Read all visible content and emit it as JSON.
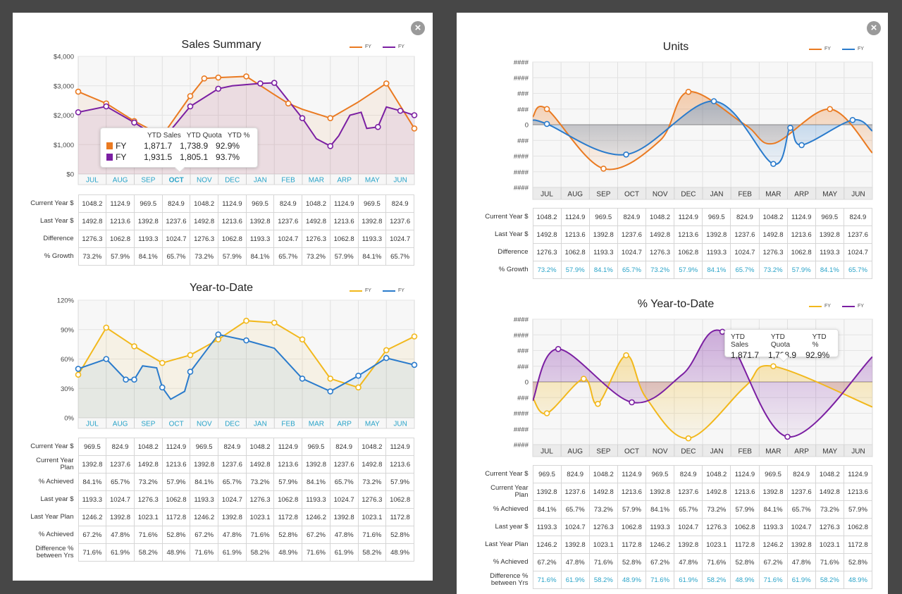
{
  "colors": {
    "orange": "#ea7a21",
    "purple": "#7b1fa2",
    "gold": "#f2b81c",
    "blue": "#2a7bcc",
    "teal": "#29a3c8"
  },
  "icons": {
    "close": "close-icon"
  },
  "months": [
    "JUL",
    "AUG",
    "SEP",
    "OCT",
    "NOV",
    "DEC",
    "JAN",
    "FEB",
    "MAR",
    "ARP",
    "MAY",
    "JUN"
  ],
  "sales_summary": {
    "title": "Sales Summary",
    "legend": [
      "FY",
      "FY"
    ],
    "tooltip": {
      "headers": [
        "YTD Sales",
        "YTD Quota",
        "YTD %"
      ],
      "rows": [
        {
          "name": "FY",
          "values": [
            "1,871.7",
            "1,738.9",
            "92.9%"
          ]
        },
        {
          "name": "FY",
          "values": [
            "1,931.5",
            "1,805.1",
            "93.7%"
          ]
        }
      ]
    },
    "table": [
      {
        "label": "Current Year $",
        "values": [
          "1048.2",
          "1124.9",
          "969.5",
          "824.9",
          "1048.2",
          "1124.9",
          "969.5",
          "824.9",
          "1048.2",
          "1124.9",
          "969.5",
          "824.9"
        ]
      },
      {
        "label": "Last Year $",
        "values": [
          "1492.8",
          "1213.6",
          "1392.8",
          "1237.6",
          "1492.8",
          "1213.6",
          "1392.8",
          "1237.6",
          "1492.8",
          "1213.6",
          "1392.8",
          "1237.6"
        ]
      },
      {
        "label": "Difference",
        "values": [
          "1276.3",
          "1062.8",
          "1193.3",
          "1024.7",
          "1276.3",
          "1062.8",
          "1193.3",
          "1024.7",
          "1276.3",
          "1062.8",
          "1193.3",
          "1024.7"
        ]
      },
      {
        "label": "% Growth",
        "values": [
          "73.2%",
          "57.9%",
          "84.1%",
          "65.7%",
          "73.2%",
          "57.9%",
          "84.1%",
          "65.7%",
          "73.2%",
          "57.9%",
          "84.1%",
          "65.7%"
        ]
      }
    ]
  },
  "ytd": {
    "title": "Year-to-Date",
    "legend": [
      "FY",
      "FY"
    ],
    "table": [
      {
        "label": "Current Year $",
        "values": [
          "969.5",
          "824.9",
          "1048.2",
          "1124.9",
          "969.5",
          "824.9",
          "1048.2",
          "1124.9",
          "969.5",
          "824.9",
          "1048.2",
          "1124.9"
        ]
      },
      {
        "label": "Current Year Plan",
        "values": [
          "1392.8",
          "1237.6",
          "1492.8",
          "1213.6",
          "1392.8",
          "1237.6",
          "1492.8",
          "1213.6",
          "1392.8",
          "1237.6",
          "1492.8",
          "1213.6"
        ]
      },
      {
        "label": "% Achieved",
        "values": [
          "84.1%",
          "65.7%",
          "73.2%",
          "57.9%",
          "84.1%",
          "65.7%",
          "73.2%",
          "57.9%",
          "84.1%",
          "65.7%",
          "73.2%",
          "57.9%"
        ]
      },
      {
        "label": "Last year $",
        "values": [
          "1193.3",
          "1024.7",
          "1276.3",
          "1062.8",
          "1193.3",
          "1024.7",
          "1276.3",
          "1062.8",
          "1193.3",
          "1024.7",
          "1276.3",
          "1062.8"
        ]
      },
      {
        "label": "Last Year Plan",
        "values": [
          "1246.2",
          "1392.8",
          "1023.1",
          "1172.8",
          "1246.2",
          "1392.8",
          "1023.1",
          "1172.8",
          "1246.2",
          "1392.8",
          "1023.1",
          "1172.8"
        ]
      },
      {
        "label": "% Achieved",
        "values": [
          "67.2%",
          "47.8%",
          "71.6%",
          "52.8%",
          "67.2%",
          "47.8%",
          "71.6%",
          "52.8%",
          "67.2%",
          "47.8%",
          "71.6%",
          "52.8%"
        ]
      },
      {
        "label": "Difference % between Yrs",
        "values": [
          "71.6%",
          "61.9%",
          "58.2%",
          "48.9%",
          "71.6%",
          "61.9%",
          "58.2%",
          "48.9%",
          "71.6%",
          "61.9%",
          "58.2%",
          "48.9%"
        ]
      }
    ]
  },
  "units": {
    "title": "Units",
    "legend": [
      "FY",
      "FY"
    ],
    "table": [
      {
        "label": "Current Year $",
        "values": [
          "1048.2",
          "1124.9",
          "969.5",
          "824.9",
          "1048.2",
          "1124.9",
          "969.5",
          "824.9",
          "1048.2",
          "1124.9",
          "969.5",
          "824.9"
        ]
      },
      {
        "label": "Last Year $",
        "values": [
          "1492.8",
          "1213.6",
          "1392.8",
          "1237.6",
          "1492.8",
          "1213.6",
          "1392.8",
          "1237.6",
          "1492.8",
          "1213.6",
          "1392.8",
          "1237.6"
        ]
      },
      {
        "label": "Difference",
        "values": [
          "1276.3",
          "1062.8",
          "1193.3",
          "1024.7",
          "1276.3",
          "1062.8",
          "1193.3",
          "1024.7",
          "1276.3",
          "1062.8",
          "1193.3",
          "1024.7"
        ]
      },
      {
        "label": "% Growth",
        "values": [
          "73.2%",
          "57.9%",
          "84.1%",
          "65.7%",
          "73.2%",
          "57.9%",
          "84.1%",
          "65.7%",
          "73.2%",
          "57.9%",
          "84.1%",
          "65.7%"
        ]
      }
    ]
  },
  "pct_ytd": {
    "title": "% Year-to-Date",
    "legend": [
      "FY",
      "FY"
    ],
    "tooltip": {
      "headers": [
        "YTD Sales",
        "YTD Quota",
        "YTD %"
      ],
      "values": [
        "1,871.7",
        "1,738.9",
        "92.9%"
      ]
    },
    "table": [
      {
        "label": "Current Year $",
        "values": [
          "969.5",
          "824.9",
          "1048.2",
          "1124.9",
          "969.5",
          "824.9",
          "1048.2",
          "1124.9",
          "969.5",
          "824.9",
          "1048.2",
          "1124.9"
        ]
      },
      {
        "label": "Current Year Plan",
        "values": [
          "1392.8",
          "1237.6",
          "1492.8",
          "1213.6",
          "1392.8",
          "1237.6",
          "1492.8",
          "1213.6",
          "1392.8",
          "1237.6",
          "1492.8",
          "1213.6"
        ]
      },
      {
        "label": "% Achieved",
        "values": [
          "84.1%",
          "65.7%",
          "73.2%",
          "57.9%",
          "84.1%",
          "65.7%",
          "73.2%",
          "57.9%",
          "84.1%",
          "65.7%",
          "73.2%",
          "57.9%"
        ]
      },
      {
        "label": "Last year $",
        "values": [
          "1193.3",
          "1024.7",
          "1276.3",
          "1062.8",
          "1193.3",
          "1024.7",
          "1276.3",
          "1062.8",
          "1193.3",
          "1024.7",
          "1276.3",
          "1062.8"
        ]
      },
      {
        "label": "Last Year Plan",
        "values": [
          "1246.2",
          "1392.8",
          "1023.1",
          "1172.8",
          "1246.2",
          "1392.8",
          "1023.1",
          "1172.8",
          "1246.2",
          "1392.8",
          "1023.1",
          "1172.8"
        ]
      },
      {
        "label": "% Achieved",
        "values": [
          "67.2%",
          "47.8%",
          "71.6%",
          "52.8%",
          "67.2%",
          "47.8%",
          "71.6%",
          "52.8%",
          "67.2%",
          "47.8%",
          "71.6%",
          "52.8%"
        ]
      },
      {
        "label": "Difference % between Yrs",
        "values": [
          "71.6%",
          "61.9%",
          "58.2%",
          "48.9%",
          "71.6%",
          "61.9%",
          "58.2%",
          "48.9%",
          "71.6%",
          "61.9%",
          "58.2%",
          "48.9%"
        ]
      }
    ]
  },
  "chart_data": [
    {
      "type": "line",
      "title": "Sales Summary",
      "categories": [
        "JUL",
        "AUG",
        "SEP",
        "OCT",
        "NOV",
        "DEC",
        "JAN",
        "FEB",
        "MAR",
        "ARP",
        "MAY",
        "JUN"
      ],
      "y_ticks": [
        "$0",
        "$1,000",
        "$2,000",
        "$3,000",
        "$4,000"
      ],
      "ylim": [
        0,
        4000
      ],
      "grid": true,
      "legend": "top-right",
      "series": [
        {
          "name": "FY",
          "color": "#ea7a21",
          "points": [
            [
              -0.5,
              2800
            ],
            [
              0.5,
              2400
            ],
            [
              1.5,
              1800
            ],
            [
              2.5,
              1300
            ],
            [
              3.5,
              2650
            ],
            [
              4,
              3250
            ],
            [
              4.5,
              3280
            ],
            [
              5.5,
              3320
            ],
            [
              6.5,
              2700
            ],
            [
              7,
              2400
            ],
            [
              7.5,
              2200
            ],
            [
              8.5,
              1900
            ],
            [
              9.5,
              2450
            ],
            [
              10.5,
              3080
            ],
            [
              11.5,
              1550
            ]
          ]
        },
        {
          "name": "FY",
          "color": "#7b1fa2",
          "points": [
            [
              -0.5,
              2100
            ],
            [
              0.5,
              2300
            ],
            [
              1.5,
              1750
            ],
            [
              2.5,
              1150
            ],
            [
              3.5,
              2300
            ],
            [
              4.5,
              2900
            ],
            [
              5,
              3000
            ],
            [
              6,
              3080
            ],
            [
              6.5,
              3100
            ],
            [
              7.5,
              1900
            ],
            [
              8,
              1200
            ],
            [
              8.5,
              950
            ],
            [
              8.8,
              1300
            ],
            [
              9.2,
              2000
            ],
            [
              9.6,
              2100
            ],
            [
              9.8,
              1550
            ],
            [
              10.2,
              1600
            ],
            [
              10.5,
              2280
            ],
            [
              11,
              2150
            ],
            [
              11.5,
              2000
            ]
          ]
        }
      ]
    },
    {
      "type": "line",
      "title": "Year-to-Date",
      "categories": [
        "JUL",
        "AUG",
        "SEP",
        "OCT",
        "NOV",
        "DEC",
        "JAN",
        "FEB",
        "MAR",
        "ARP",
        "MAY",
        "JUN"
      ],
      "y_ticks": [
        "0%",
        "30%",
        "60%",
        "90%",
        "120%"
      ],
      "ylim": [
        0,
        120
      ],
      "grid": true,
      "legend": "top-right",
      "series": [
        {
          "name": "FY",
          "color": "#f2b81c",
          "points": [
            [
              -0.5,
              44
            ],
            [
              0.5,
              92
            ],
            [
              1.5,
              73
            ],
            [
              2.5,
              56
            ],
            [
              3.5,
              64
            ],
            [
              4.5,
              80
            ],
            [
              5.5,
              99
            ],
            [
              6.5,
              97
            ],
            [
              7.5,
              80
            ],
            [
              8.5,
              40
            ],
            [
              9.5,
              31
            ],
            [
              10.5,
              69
            ],
            [
              11.5,
              83
            ]
          ]
        },
        {
          "name": "FY",
          "color": "#2a7bcc",
          "points": [
            [
              -0.5,
              50
            ],
            [
              0.5,
              60
            ],
            [
              1.2,
              39
            ],
            [
              1.5,
              39
            ],
            [
              1.8,
              53
            ],
            [
              2.3,
              51
            ],
            [
              2.5,
              31
            ],
            [
              2.8,
              19
            ],
            [
              3.3,
              27
            ],
            [
              3.5,
              47
            ],
            [
              4.5,
              85
            ],
            [
              5.5,
              79
            ],
            [
              6.5,
              71
            ],
            [
              7.5,
              40
            ],
            [
              8.5,
              27
            ],
            [
              9.5,
              43
            ],
            [
              10.5,
              61
            ],
            [
              11.5,
              54
            ]
          ]
        }
      ]
    },
    {
      "type": "area",
      "title": "Units",
      "categories": [
        "JUL",
        "AUG",
        "SEP",
        "OCT",
        "NOV",
        "DEC",
        "JAN",
        "FEB",
        "MAR",
        "ARP",
        "MAY",
        "JUN"
      ],
      "y_ticks": [
        "####",
        "####",
        "####",
        "###",
        "0",
        "###",
        "###",
        "####",
        "####"
      ],
      "grid": true,
      "legend": "top-right",
      "series": [
        {
          "name": "FY",
          "color": "#ea7a21",
          "points": [
            [
              -0.5,
              0.5
            ],
            [
              0,
              1.0
            ],
            [
              2,
              -2.8
            ],
            [
              4,
              -1.0
            ],
            [
              5,
              2.1
            ],
            [
              7,
              0
            ],
            [
              8,
              -1.2
            ],
            [
              10,
              1.0
            ],
            [
              11.5,
              -1.8
            ]
          ]
        },
        {
          "name": "FY",
          "color": "#2a7bcc",
          "points": [
            [
              -0.5,
              0.3
            ],
            [
              0,
              0.05
            ],
            [
              2.8,
              -1.9
            ],
            [
              5.9,
              1.5
            ],
            [
              8,
              -2.5
            ],
            [
              8.6,
              -0.2
            ],
            [
              9,
              -1.3
            ],
            [
              10.8,
              0.3
            ],
            [
              11.5,
              -0.4
            ]
          ]
        }
      ]
    },
    {
      "type": "area",
      "title": "% Year-to-Date",
      "categories": [
        "JUL",
        "AUG",
        "SEP",
        "OCT",
        "NOV",
        "DEC",
        "JAN",
        "FEB",
        "MAR",
        "ARP",
        "MAY",
        "JUN"
      ],
      "y_ticks": [
        "####",
        "####",
        "####",
        "###",
        "0",
        "###",
        "###",
        "####",
        "####"
      ],
      "grid": true,
      "legend": "top-right",
      "series": [
        {
          "name": "FY",
          "color": "#f2b81c",
          "points": [
            [
              -0.5,
              -1.0
            ],
            [
              0,
              -2.0
            ],
            [
              1.3,
              0.2
            ],
            [
              1.8,
              -1.4
            ],
            [
              2.8,
              1.7
            ],
            [
              3.5,
              -1.0
            ],
            [
              5,
              -3.6
            ],
            [
              7,
              -0.3
            ],
            [
              8,
              1.0
            ],
            [
              11.5,
              -1.6
            ]
          ]
        },
        {
          "name": "FY",
          "color": "#7b1fa2",
          "points": [
            [
              -0.5,
              -1.2
            ],
            [
              0.4,
              2.1
            ],
            [
              3,
              -1.3
            ],
            [
              4.8,
              0.5
            ],
            [
              6.2,
              3.2
            ],
            [
              8.5,
              -3.5
            ],
            [
              11.5,
              1.6
            ]
          ]
        }
      ]
    }
  ]
}
